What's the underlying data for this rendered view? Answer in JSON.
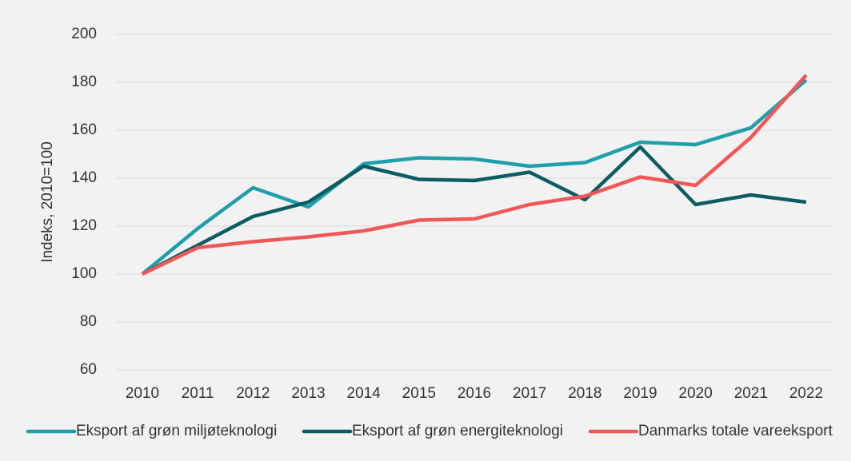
{
  "chart_data": {
    "type": "line",
    "y_label": "Indeks, 2010=100",
    "categories": [
      "2010",
      "2011",
      "2012",
      "2013",
      "2014",
      "2015",
      "2016",
      "2017",
      "2018",
      "2019",
      "2020",
      "2021",
      "2022"
    ],
    "series": [
      {
        "name": "Eksport af grøn miljøteknologi",
        "color": "#1f9faa",
        "values": [
          100,
          119,
          136,
          128,
          146,
          148.5,
          148,
          145,
          146.5,
          155,
          154,
          161,
          181
        ]
      },
      {
        "name": "Eksport af grøn energiteknologi",
        "color": "#0d5c63",
        "values": [
          100,
          112,
          124,
          130,
          145,
          139.5,
          139,
          142.5,
          131,
          153,
          129,
          133,
          130
        ]
      },
      {
        "name": "Danmarks totale vareeksport",
        "color": "#f25757",
        "values": [
          100,
          111,
          113.5,
          115.5,
          118,
          122.5,
          123,
          129,
          132.5,
          140.5,
          137,
          157,
          183
        ]
      }
    ],
    "ylim": [
      60,
      200
    ],
    "yticks": [
      60,
      80,
      100,
      120,
      140,
      160,
      180,
      200
    ],
    "grid": true,
    "legend": "bottom"
  }
}
